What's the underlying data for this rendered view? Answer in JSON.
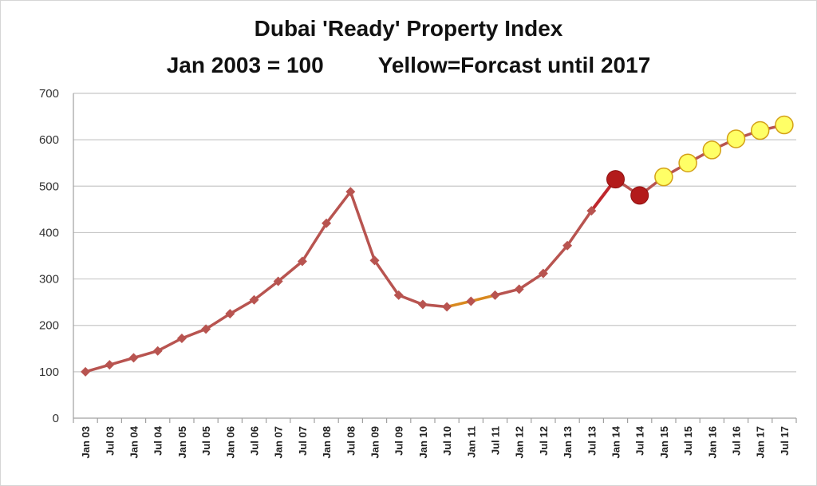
{
  "chart_data": {
    "type": "line",
    "title": "Dubai 'Ready' Property Index",
    "subtitle_left": "Jan 2003 = 100",
    "subtitle_right": "Yellow=Forcast until 2017",
    "xlabel": "",
    "ylabel": "",
    "ylim": [
      0,
      700
    ],
    "yticks": [
      0,
      100,
      200,
      300,
      400,
      500,
      600,
      700
    ],
    "grid": true,
    "legend": "none",
    "categories": [
      "Jan 03",
      "Jul 03",
      "Jan 04",
      "Jul 04",
      "Jan 05",
      "Jul 05",
      "Jan 06",
      "Jul 06",
      "Jan 07",
      "Jul 07",
      "Jan 08",
      "Jul 08",
      "Jan 09",
      "Jul 09",
      "Jan 10",
      "Jul 10",
      "Jan 11",
      "Jul 11",
      "Jan 12",
      "Jul 12",
      "Jan 13",
      "Jul 13",
      "Jan 14",
      "Jul 14",
      "Jan 15",
      "Jul 15",
      "Jan 16",
      "Jul 16",
      "Jan 17",
      "Jul 17"
    ],
    "series": [
      {
        "values": [
          100,
          115,
          130,
          145,
          172,
          192,
          225,
          255,
          295,
          338,
          420,
          488,
          340,
          265,
          245,
          240,
          252,
          265,
          278,
          312,
          372,
          447,
          515,
          480,
          520,
          550,
          578,
          602,
          620,
          632
        ],
        "historical_end_index": 21,
        "highlight_red_indices": [
          22,
          23
        ],
        "highlight_orange_segment": [
          15,
          17
        ],
        "forecast_indices": [
          24,
          25,
          26,
          27,
          28,
          29
        ]
      }
    ],
    "colors": {
      "line": "#b85450",
      "historical_marker": "#b85450",
      "red_marker": "#b31b1b",
      "red_line": "#c0272d",
      "orange_segment": "#d9891f",
      "forecast_fill": "#ffff66",
      "forecast_stroke": "#d4a017",
      "grid": "#c8c8c8",
      "axis": "#a0a0a0"
    }
  }
}
